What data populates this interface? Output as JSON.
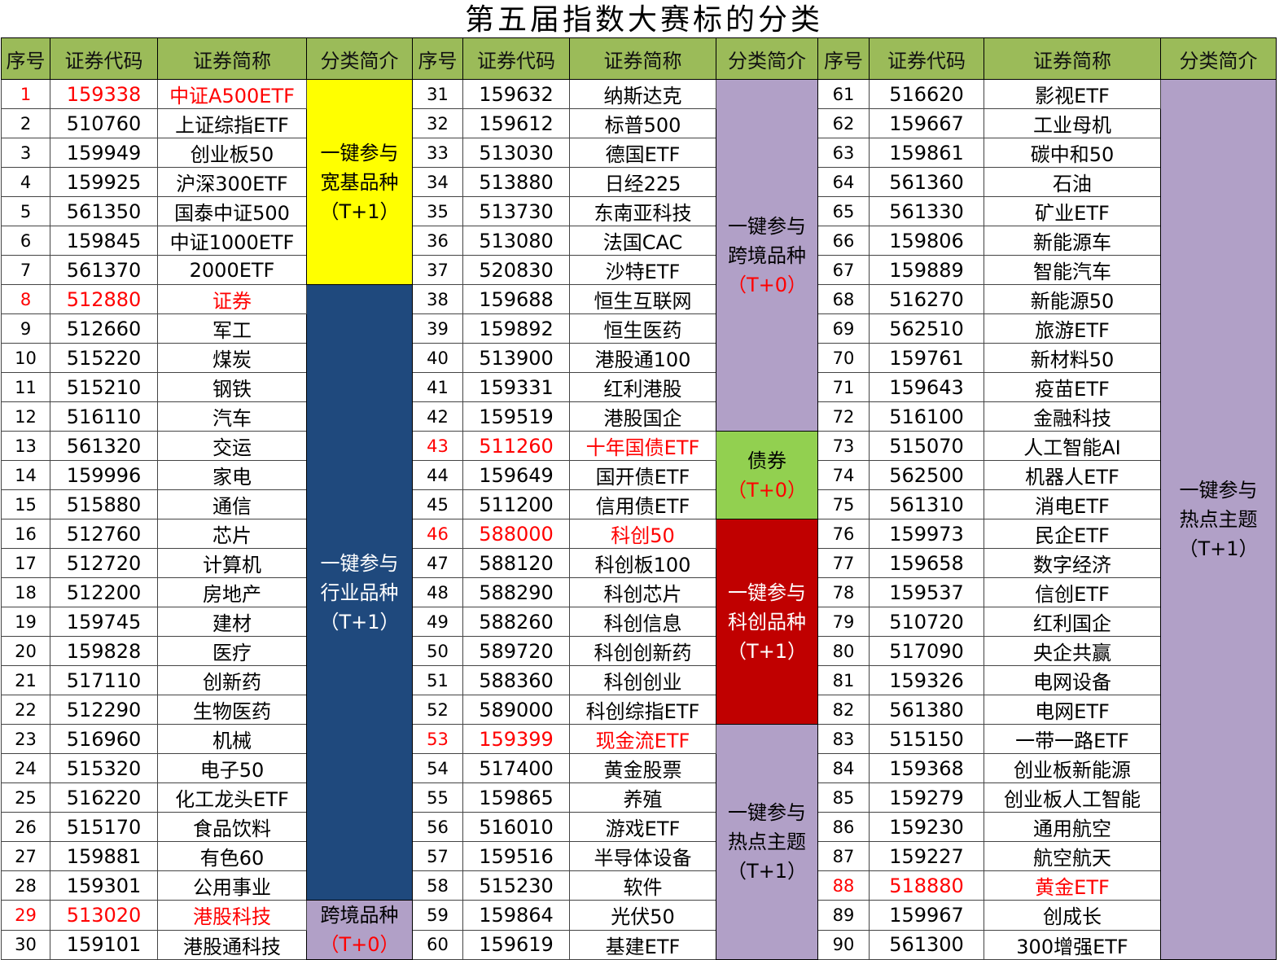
{
  "title": "第五届指数大赛标的分类",
  "headers": [
    "序号",
    "证券代码",
    "证券简称",
    "分类简介"
  ],
  "colors": {
    "header": "#9BBB59",
    "yellow": "#FFFF00",
    "navy": "#1F497D",
    "lavender": "#B1A0C7",
    "green": "#92D050",
    "darkred": "#C00000",
    "highlight_text": "#FF0000"
  },
  "groups": [
    {
      "rows": [
        {
          "no": "1",
          "code": "159338",
          "name": "中证A500ETF",
          "highlight": true
        },
        {
          "no": "2",
          "code": "510760",
          "name": "上证综指ETF"
        },
        {
          "no": "3",
          "code": "159949",
          "name": "创业板50"
        },
        {
          "no": "4",
          "code": "159925",
          "name": "沪深300ETF"
        },
        {
          "no": "5",
          "code": "561350",
          "name": "国泰中证500"
        },
        {
          "no": "6",
          "code": "159845",
          "name": "中证1000ETF"
        },
        {
          "no": "7",
          "code": "561370",
          "name": "2000ETF"
        },
        {
          "no": "8",
          "code": "512880",
          "name": "证券",
          "highlight": true
        },
        {
          "no": "9",
          "code": "512660",
          "name": "军工"
        },
        {
          "no": "10",
          "code": "515220",
          "name": "煤炭"
        },
        {
          "no": "11",
          "code": "515210",
          "name": "钢铁"
        },
        {
          "no": "12",
          "code": "516110",
          "name": "汽车"
        },
        {
          "no": "13",
          "code": "561320",
          "name": "交运"
        },
        {
          "no": "14",
          "code": "159996",
          "name": "家电"
        },
        {
          "no": "15",
          "code": "515880",
          "name": "通信"
        },
        {
          "no": "16",
          "code": "512760",
          "name": "芯片"
        },
        {
          "no": "17",
          "code": "512720",
          "name": "计算机"
        },
        {
          "no": "18",
          "code": "512200",
          "name": "房地产"
        },
        {
          "no": "19",
          "code": "159745",
          "name": "建材"
        },
        {
          "no": "20",
          "code": "159828",
          "name": "医疗"
        },
        {
          "no": "21",
          "code": "517110",
          "name": "创新药"
        },
        {
          "no": "22",
          "code": "512290",
          "name": "生物医药"
        },
        {
          "no": "23",
          "code": "516960",
          "name": "机械"
        },
        {
          "no": "24",
          "code": "515320",
          "name": "电子50"
        },
        {
          "no": "25",
          "code": "516220",
          "name": "化工龙头ETF"
        },
        {
          "no": "26",
          "code": "515170",
          "name": "食品饮料"
        },
        {
          "no": "27",
          "code": "159881",
          "name": "有色60"
        },
        {
          "no": "28",
          "code": "159301",
          "name": "公用事业"
        },
        {
          "no": "29",
          "code": "513020",
          "name": "港股科技",
          "highlight": true
        },
        {
          "no": "30",
          "code": "159101",
          "name": "港股通科技"
        }
      ],
      "categories": [
        {
          "from": 1,
          "to": 7,
          "color": "yellow",
          "text_color": "#000000",
          "lines": [
            {
              "text": "一键参与"
            },
            {
              "text": "宽基品种"
            },
            {
              "text": "（T+1）"
            }
          ]
        },
        {
          "from": 8,
          "to": 28,
          "color": "navy",
          "text_color": "#FFFFFF",
          "lines": [
            {
              "text": "一键参与"
            },
            {
              "text": "行业品种"
            },
            {
              "text": "（T+1）"
            }
          ]
        },
        {
          "from": 29,
          "to": 30,
          "color": "lavender",
          "text_color": "#000000",
          "lines": [
            {
              "text": "跨境品种"
            },
            {
              "text": "（T+0）",
              "red": true
            }
          ]
        }
      ]
    },
    {
      "rows": [
        {
          "no": "31",
          "code": "159632",
          "name": "纳斯达克"
        },
        {
          "no": "32",
          "code": "159612",
          "name": "标普500"
        },
        {
          "no": "33",
          "code": "513030",
          "name": "德国ETF"
        },
        {
          "no": "34",
          "code": "513880",
          "name": "日经225"
        },
        {
          "no": "35",
          "code": "513730",
          "name": "东南亚科技"
        },
        {
          "no": "36",
          "code": "513080",
          "name": "法国CAC"
        },
        {
          "no": "37",
          "code": "520830",
          "name": "沙特ETF"
        },
        {
          "no": "38",
          "code": "159688",
          "name": "恒生互联网"
        },
        {
          "no": "39",
          "code": "159892",
          "name": "恒生医药"
        },
        {
          "no": "40",
          "code": "513900",
          "name": "港股通100"
        },
        {
          "no": "41",
          "code": "159331",
          "name": "红利港股"
        },
        {
          "no": "42",
          "code": "159519",
          "name": "港股国企"
        },
        {
          "no": "43",
          "code": "511260",
          "name": "十年国债ETF",
          "highlight": true
        },
        {
          "no": "44",
          "code": "159649",
          "name": "国开债ETF"
        },
        {
          "no": "45",
          "code": "511200",
          "name": "信用债ETF"
        },
        {
          "no": "46",
          "code": "588000",
          "name": "科创50",
          "highlight": true
        },
        {
          "no": "47",
          "code": "588120",
          "name": "科创板100"
        },
        {
          "no": "48",
          "code": "588290",
          "name": "科创芯片"
        },
        {
          "no": "49",
          "code": "588260",
          "name": "科创信息"
        },
        {
          "no": "50",
          "code": "589720",
          "name": "科创创新药"
        },
        {
          "no": "51",
          "code": "588360",
          "name": "科创创业"
        },
        {
          "no": "52",
          "code": "589000",
          "name": "科创综指ETF"
        },
        {
          "no": "53",
          "code": "159399",
          "name": "现金流ETF",
          "highlight": true
        },
        {
          "no": "54",
          "code": "517400",
          "name": "黄金股票"
        },
        {
          "no": "55",
          "code": "159865",
          "name": "养殖"
        },
        {
          "no": "56",
          "code": "516010",
          "name": "游戏ETF"
        },
        {
          "no": "57",
          "code": "159516",
          "name": "半导体设备"
        },
        {
          "no": "58",
          "code": "515230",
          "name": "软件"
        },
        {
          "no": "59",
          "code": "159864",
          "name": "光伏50"
        },
        {
          "no": "60",
          "code": "159619",
          "name": "基建ETF"
        }
      ],
      "categories": [
        {
          "from": 31,
          "to": 42,
          "color": "lavender",
          "text_color": "#000000",
          "lines": [
            {
              "text": "一键参与"
            },
            {
              "text": "跨境品种"
            },
            {
              "text": "（T+0）",
              "red": true
            }
          ]
        },
        {
          "from": 43,
          "to": 45,
          "color": "green",
          "text_color": "#000000",
          "lines": [
            {
              "text": "债券"
            },
            {
              "text": "（T+0）",
              "red": true
            }
          ]
        },
        {
          "from": 46,
          "to": 52,
          "color": "darkred",
          "text_color": "#FFFFFF",
          "lines": [
            {
              "text": "一键参与"
            },
            {
              "text": "科创品种"
            },
            {
              "text": "（T+1）"
            }
          ]
        },
        {
          "from": 53,
          "to": 60,
          "color": "lavender",
          "text_color": "#000000",
          "lines": [
            {
              "text": "一键参与"
            },
            {
              "text": "热点主题"
            },
            {
              "text": "（T+1）"
            }
          ]
        }
      ]
    },
    {
      "rows": [
        {
          "no": "61",
          "code": "516620",
          "name": "影视ETF"
        },
        {
          "no": "62",
          "code": "159667",
          "name": "工业母机"
        },
        {
          "no": "63",
          "code": "159861",
          "name": "碳中和50"
        },
        {
          "no": "64",
          "code": "561360",
          "name": "石油"
        },
        {
          "no": "65",
          "code": "561330",
          "name": "矿业ETF"
        },
        {
          "no": "66",
          "code": "159806",
          "name": "新能源车"
        },
        {
          "no": "67",
          "code": "159889",
          "name": "智能汽车"
        },
        {
          "no": "68",
          "code": "516270",
          "name": "新能源50"
        },
        {
          "no": "69",
          "code": "562510",
          "name": "旅游ETF"
        },
        {
          "no": "70",
          "code": "159761",
          "name": "新材料50"
        },
        {
          "no": "71",
          "code": "159643",
          "name": "疫苗ETF"
        },
        {
          "no": "72",
          "code": "516100",
          "name": "金融科技"
        },
        {
          "no": "73",
          "code": "515070",
          "name": "人工智能AI"
        },
        {
          "no": "74",
          "code": "562500",
          "name": "机器人ETF"
        },
        {
          "no": "75",
          "code": "561310",
          "name": "消电ETF"
        },
        {
          "no": "76",
          "code": "159973",
          "name": "民企ETF"
        },
        {
          "no": "77",
          "code": "159658",
          "name": "数字经济"
        },
        {
          "no": "78",
          "code": "159537",
          "name": "信创ETF"
        },
        {
          "no": "79",
          "code": "510720",
          "name": "红利国企"
        },
        {
          "no": "80",
          "code": "517090",
          "name": "央企共赢"
        },
        {
          "no": "81",
          "code": "159326",
          "name": "电网设备"
        },
        {
          "no": "82",
          "code": "561380",
          "name": "电网ETF"
        },
        {
          "no": "83",
          "code": "515150",
          "name": "一带一路ETF"
        },
        {
          "no": "84",
          "code": "159368",
          "name": "创业板新能源"
        },
        {
          "no": "85",
          "code": "159279",
          "name": "创业板人工智能"
        },
        {
          "no": "86",
          "code": "159230",
          "name": "通用航空"
        },
        {
          "no": "87",
          "code": "159227",
          "name": "航空航天"
        },
        {
          "no": "88",
          "code": "518880",
          "name": "黄金ETF",
          "highlight": true
        },
        {
          "no": "89",
          "code": "159967",
          "name": "创成长"
        },
        {
          "no": "90",
          "code": "561300",
          "name": "300增强ETF"
        }
      ],
      "categories": [
        {
          "from": 61,
          "to": 90,
          "color": "lavender",
          "text_color": "#000000",
          "lines": [
            {
              "text": "一键参与"
            },
            {
              "text": "热点主题"
            },
            {
              "text": "（T+1）"
            }
          ]
        }
      ]
    }
  ]
}
